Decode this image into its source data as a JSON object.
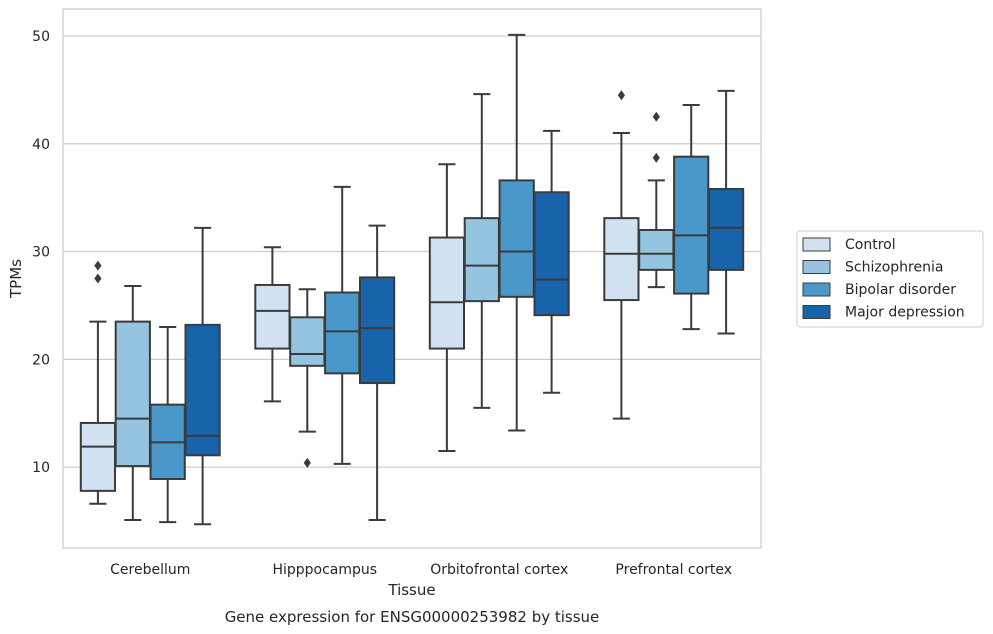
{
  "chart_data": {
    "type": "box",
    "caption": "Gene expression for ENSG00000253982 by tissue",
    "xlabel": "Tissue",
    "ylabel": "TPMs",
    "ylim": [
      2.5,
      52.5
    ],
    "yticks": [
      10,
      20,
      30,
      40,
      50
    ],
    "grid": "horizontal",
    "legend_position": "right",
    "categories": [
      "Cerebellum",
      "Hipppocampus",
      "Orbitofrontal cortex",
      "Prefrontal cortex"
    ],
    "series": [
      {
        "name": "Control",
        "color": "#d0e1f2",
        "boxes": [
          {
            "whisker_low": 6.6,
            "q1": 7.8,
            "median": 11.9,
            "q3": 14.1,
            "whisker_high": 23.5,
            "outliers": [
              27.5,
              28.7
            ]
          },
          {
            "whisker_low": 16.1,
            "q1": 21.0,
            "median": 24.5,
            "q3": 26.9,
            "whisker_high": 30.4,
            "outliers": []
          },
          {
            "whisker_low": 11.5,
            "q1": 21.0,
            "median": 25.3,
            "q3": 31.3,
            "whisker_high": 38.1,
            "outliers": []
          },
          {
            "whisker_low": 14.5,
            "q1": 25.5,
            "median": 29.8,
            "q3": 33.1,
            "whisker_high": 41.0,
            "outliers": [
              44.5
            ]
          }
        ]
      },
      {
        "name": "Schizophrenia",
        "color": "#94c4df",
        "boxes": [
          {
            "whisker_low": 5.1,
            "q1": 10.1,
            "median": 14.5,
            "q3": 23.5,
            "whisker_high": 26.8,
            "outliers": []
          },
          {
            "whisker_low": 13.3,
            "q1": 19.4,
            "median": 20.5,
            "q3": 23.9,
            "whisker_high": 26.5,
            "outliers": [
              10.4
            ]
          },
          {
            "whisker_low": 15.5,
            "q1": 25.4,
            "median": 28.7,
            "q3": 33.1,
            "whisker_high": 44.6,
            "outliers": []
          },
          {
            "whisker_low": 26.7,
            "q1": 28.3,
            "median": 29.8,
            "q3": 32.0,
            "whisker_high": 36.6,
            "outliers": [
              38.7,
              42.5
            ]
          }
        ]
      },
      {
        "name": "Bipolar disorder",
        "color": "#4a98c9",
        "boxes": [
          {
            "whisker_low": 4.9,
            "q1": 8.9,
            "median": 12.3,
            "q3": 15.8,
            "whisker_high": 23.0,
            "outliers": []
          },
          {
            "whisker_low": 10.3,
            "q1": 18.7,
            "median": 22.6,
            "q3": 26.2,
            "whisker_high": 36.0,
            "outliers": []
          },
          {
            "whisker_low": 13.4,
            "q1": 25.8,
            "median": 30.0,
            "q3": 36.6,
            "whisker_high": 50.1,
            "outliers": []
          },
          {
            "whisker_low": 22.8,
            "q1": 26.1,
            "median": 31.5,
            "q3": 38.8,
            "whisker_high": 43.6,
            "outliers": []
          }
        ]
      },
      {
        "name": "Major depression",
        "color": "#1764ab",
        "boxes": [
          {
            "whisker_low": 4.7,
            "q1": 11.1,
            "median": 12.9,
            "q3": 23.2,
            "whisker_high": 32.2,
            "outliers": []
          },
          {
            "whisker_low": 5.1,
            "q1": 17.8,
            "median": 22.9,
            "q3": 27.6,
            "whisker_high": 32.4,
            "outliers": []
          },
          {
            "whisker_low": 16.9,
            "q1": 24.1,
            "median": 27.4,
            "q3": 35.5,
            "whisker_high": 41.2,
            "outliers": []
          },
          {
            "whisker_low": 22.4,
            "q1": 28.3,
            "median": 32.2,
            "q3": 35.8,
            "whisker_high": 44.9,
            "outliers": []
          }
        ]
      }
    ]
  }
}
